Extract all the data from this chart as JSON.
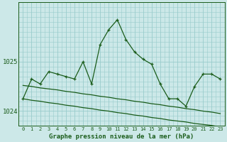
{
  "title": "Graphe pression niveau de la mer (hPa)",
  "background_color": "#cce8e8",
  "grid_color": "#99cccc",
  "line_color": "#1a5c1a",
  "ylim": [
    1023.7,
    1026.2
  ],
  "yticks": [
    1024,
    1025
  ],
  "xlim": [
    -0.5,
    23.5
  ],
  "xticks": [
    0,
    1,
    2,
    3,
    4,
    5,
    6,
    7,
    8,
    9,
    10,
    11,
    12,
    13,
    14,
    15,
    16,
    17,
    18,
    19,
    20,
    21,
    22,
    23
  ],
  "series_main": [
    1024.25,
    1024.65,
    1024.55,
    1024.8,
    1024.75,
    1024.7,
    1024.65,
    1025.0,
    1024.55,
    1025.35,
    1025.65,
    1025.85,
    1025.45,
    1025.2,
    1025.05,
    1024.95,
    1024.55,
    1024.25,
    1024.25,
    1024.1,
    1024.5,
    1024.75,
    1024.75,
    1024.65
  ],
  "series_low": [
    1024.25,
    1024.22,
    1024.2,
    1024.17,
    1024.15,
    1024.12,
    1024.1,
    1024.07,
    1024.05,
    1024.02,
    1024.0,
    1023.97,
    1023.95,
    1023.92,
    1023.9,
    1023.87,
    1023.85,
    1023.82,
    1023.8,
    1023.78,
    1023.75,
    1023.73,
    1023.71,
    1023.68
  ],
  "series_high": [
    1024.52,
    1024.5,
    1024.47,
    1024.45,
    1024.43,
    1024.4,
    1024.38,
    1024.35,
    1024.33,
    1024.3,
    1024.28,
    1024.25,
    1024.23,
    1024.2,
    1024.18,
    1024.15,
    1024.13,
    1024.1,
    1024.08,
    1024.05,
    1024.03,
    1024.0,
    1023.98,
    1023.95
  ]
}
